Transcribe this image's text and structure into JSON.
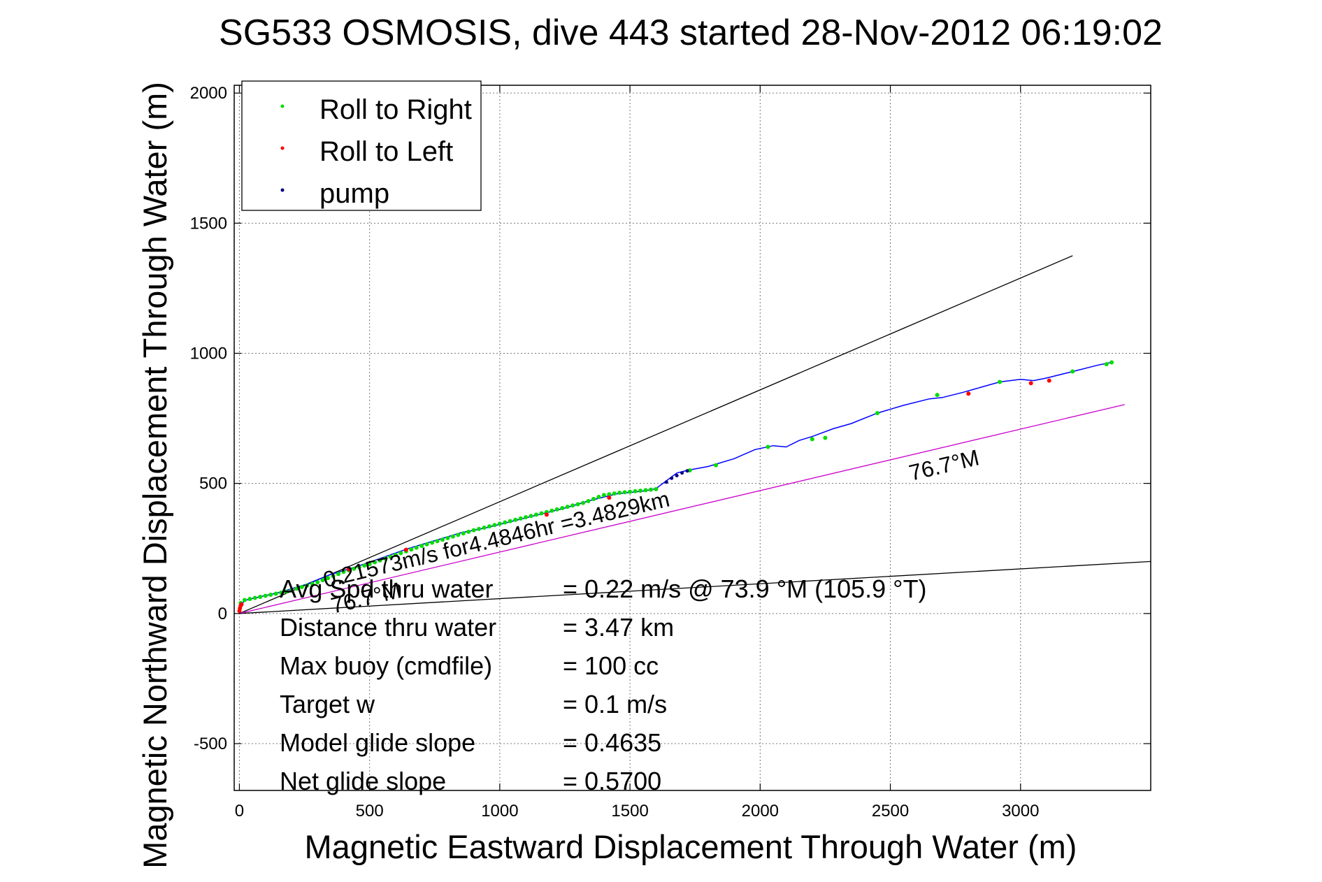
{
  "chart_data": {
    "type": "scatter",
    "title": "SG533 OSMOSIS, dive 443 started 28-Nov-2012 06:19:02",
    "xlabel": "Magnetic Eastward Displacement Through Water (m)",
    "ylabel": "Magnetic Northward Displacement Through Water (m)",
    "xlim": [
      -20,
      3500
    ],
    "ylim": [
      -680,
      2030
    ],
    "xticks": [
      0,
      500,
      1000,
      1500,
      2000,
      2500,
      3000
    ],
    "yticks": [
      -500,
      0,
      500,
      1000,
      1500,
      2000
    ],
    "grid": true,
    "legend_position": "top-left",
    "legend": [
      {
        "label": "Roll to Right",
        "color": "#00dd00"
      },
      {
        "label": "Roll to Left",
        "color": "#ff0000"
      },
      {
        "label": "pump",
        "color": "#000080"
      }
    ],
    "track": {
      "color": "#0000ff",
      "x": [
        0,
        5,
        20,
        60,
        150,
        250,
        350,
        450,
        550,
        650,
        750,
        850,
        950,
        1050,
        1150,
        1250,
        1350,
        1450,
        1550,
        1600,
        1640,
        1680,
        1720,
        1800,
        1900,
        1980,
        2050,
        2100,
        2150,
        2200,
        2280,
        2350,
        2450,
        2550,
        2650,
        2700,
        2780,
        2850,
        2920,
        3000,
        3050,
        3100,
        3200,
        3300,
        3350
      ],
      "y": [
        0,
        30,
        50,
        60,
        80,
        110,
        150,
        180,
        215,
        250,
        280,
        310,
        330,
        355,
        380,
        405,
        435,
        460,
        470,
        480,
        510,
        540,
        550,
        565,
        595,
        630,
        645,
        640,
        665,
        680,
        710,
        730,
        770,
        800,
        825,
        830,
        850,
        870,
        890,
        900,
        895,
        905,
        930,
        955,
        965
      ]
    },
    "roll_right_x": [
      5,
      20,
      40,
      60,
      80,
      100,
      120,
      140,
      160,
      180,
      200,
      220,
      240,
      260,
      280,
      300,
      320,
      340,
      360,
      380,
      400,
      420,
      440,
      460,
      480,
      500,
      520,
      540,
      560,
      580,
      600,
      620,
      640,
      660,
      680,
      700,
      720,
      740,
      760,
      780,
      800,
      820,
      840,
      860,
      880,
      900,
      920,
      940,
      960,
      980,
      1000,
      1020,
      1040,
      1060,
      1080,
      1100,
      1120,
      1140,
      1160,
      1180,
      1200,
      1220,
      1240,
      1260,
      1280,
      1300,
      1320,
      1340,
      1360,
      1380,
      1400,
      1420,
      1440,
      1460,
      1480,
      1500,
      1520,
      1540,
      1560,
      1580,
      1600,
      1730,
      1830,
      2030,
      2200,
      2250,
      2450,
      2680,
      2920,
      3200,
      3330,
      3350
    ],
    "roll_right_y": [
      40,
      52,
      56,
      60,
      64,
      68,
      72,
      76,
      80,
      84,
      90,
      96,
      102,
      108,
      114,
      120,
      128,
      136,
      144,
      152,
      160,
      166,
      172,
      178,
      184,
      190,
      197,
      204,
      211,
      218,
      225,
      232,
      239,
      246,
      253,
      260,
      266,
      272,
      278,
      284,
      290,
      296,
      302,
      308,
      314,
      320,
      325,
      330,
      335,
      340,
      345,
      350,
      355,
      360,
      365,
      370,
      375,
      380,
      385,
      390,
      395,
      400,
      405,
      410,
      415,
      420,
      425,
      432,
      440,
      448,
      455,
      458,
      461,
      464,
      466,
      468,
      470,
      472,
      474,
      476,
      478,
      550,
      570,
      640,
      670,
      675,
      770,
      840,
      890,
      930,
      958,
      965
    ],
    "roll_left_x": [
      0,
      2,
      5,
      8,
      420,
      640,
      1180,
      1420,
      2800,
      3040,
      3110
    ],
    "roll_left_y": [
      10,
      20,
      30,
      35,
      170,
      245,
      380,
      445,
      845,
      885,
      895
    ],
    "pump_x": [
      1640,
      1660,
      1680,
      1700,
      1720
    ],
    "pump_y": [
      505,
      520,
      530,
      540,
      548
    ],
    "ref_lines": [
      {
        "x": [
          0,
          3200
        ],
        "y": [
          0,
          1375
        ],
        "color": "#000000"
      },
      {
        "x": [
          0,
          3500
        ],
        "y": [
          0,
          200
        ],
        "color": "#000000"
      },
      {
        "x": [
          0,
          3400
        ],
        "y": [
          0,
          803
        ],
        "color": "#cc00cc"
      }
    ],
    "annotations": [
      {
        "text": "76.7°M",
        "x": 2580,
        "y": 510,
        "angle": -13.3,
        "size": 32
      },
      {
        "text": "0.21573m/s for4.4846hr =3.4829km",
        "x": 330,
        "y": 100,
        "angle": -13.3,
        "size": 32
      },
      {
        "text": "76.7°M",
        "x": 360,
        "y": 0,
        "angle": -13.3,
        "size": 32
      }
    ],
    "stats": [
      {
        "label": "Avg Spd thru water",
        "value": "=  0.22 m/s @  73.9 °M (105.9 °T)"
      },
      {
        "label": "Distance thru water",
        "value": "=  3.47 km"
      },
      {
        "label": "Max buoy (cmdfile)",
        "value": "= 100 cc"
      },
      {
        "label": "Target w",
        "value": "= 0.1 m/s"
      },
      {
        "label": "Model glide slope",
        "value": "= 0.4635"
      },
      {
        "label": "Net glide slope",
        "value": "= 0.5700"
      }
    ]
  }
}
